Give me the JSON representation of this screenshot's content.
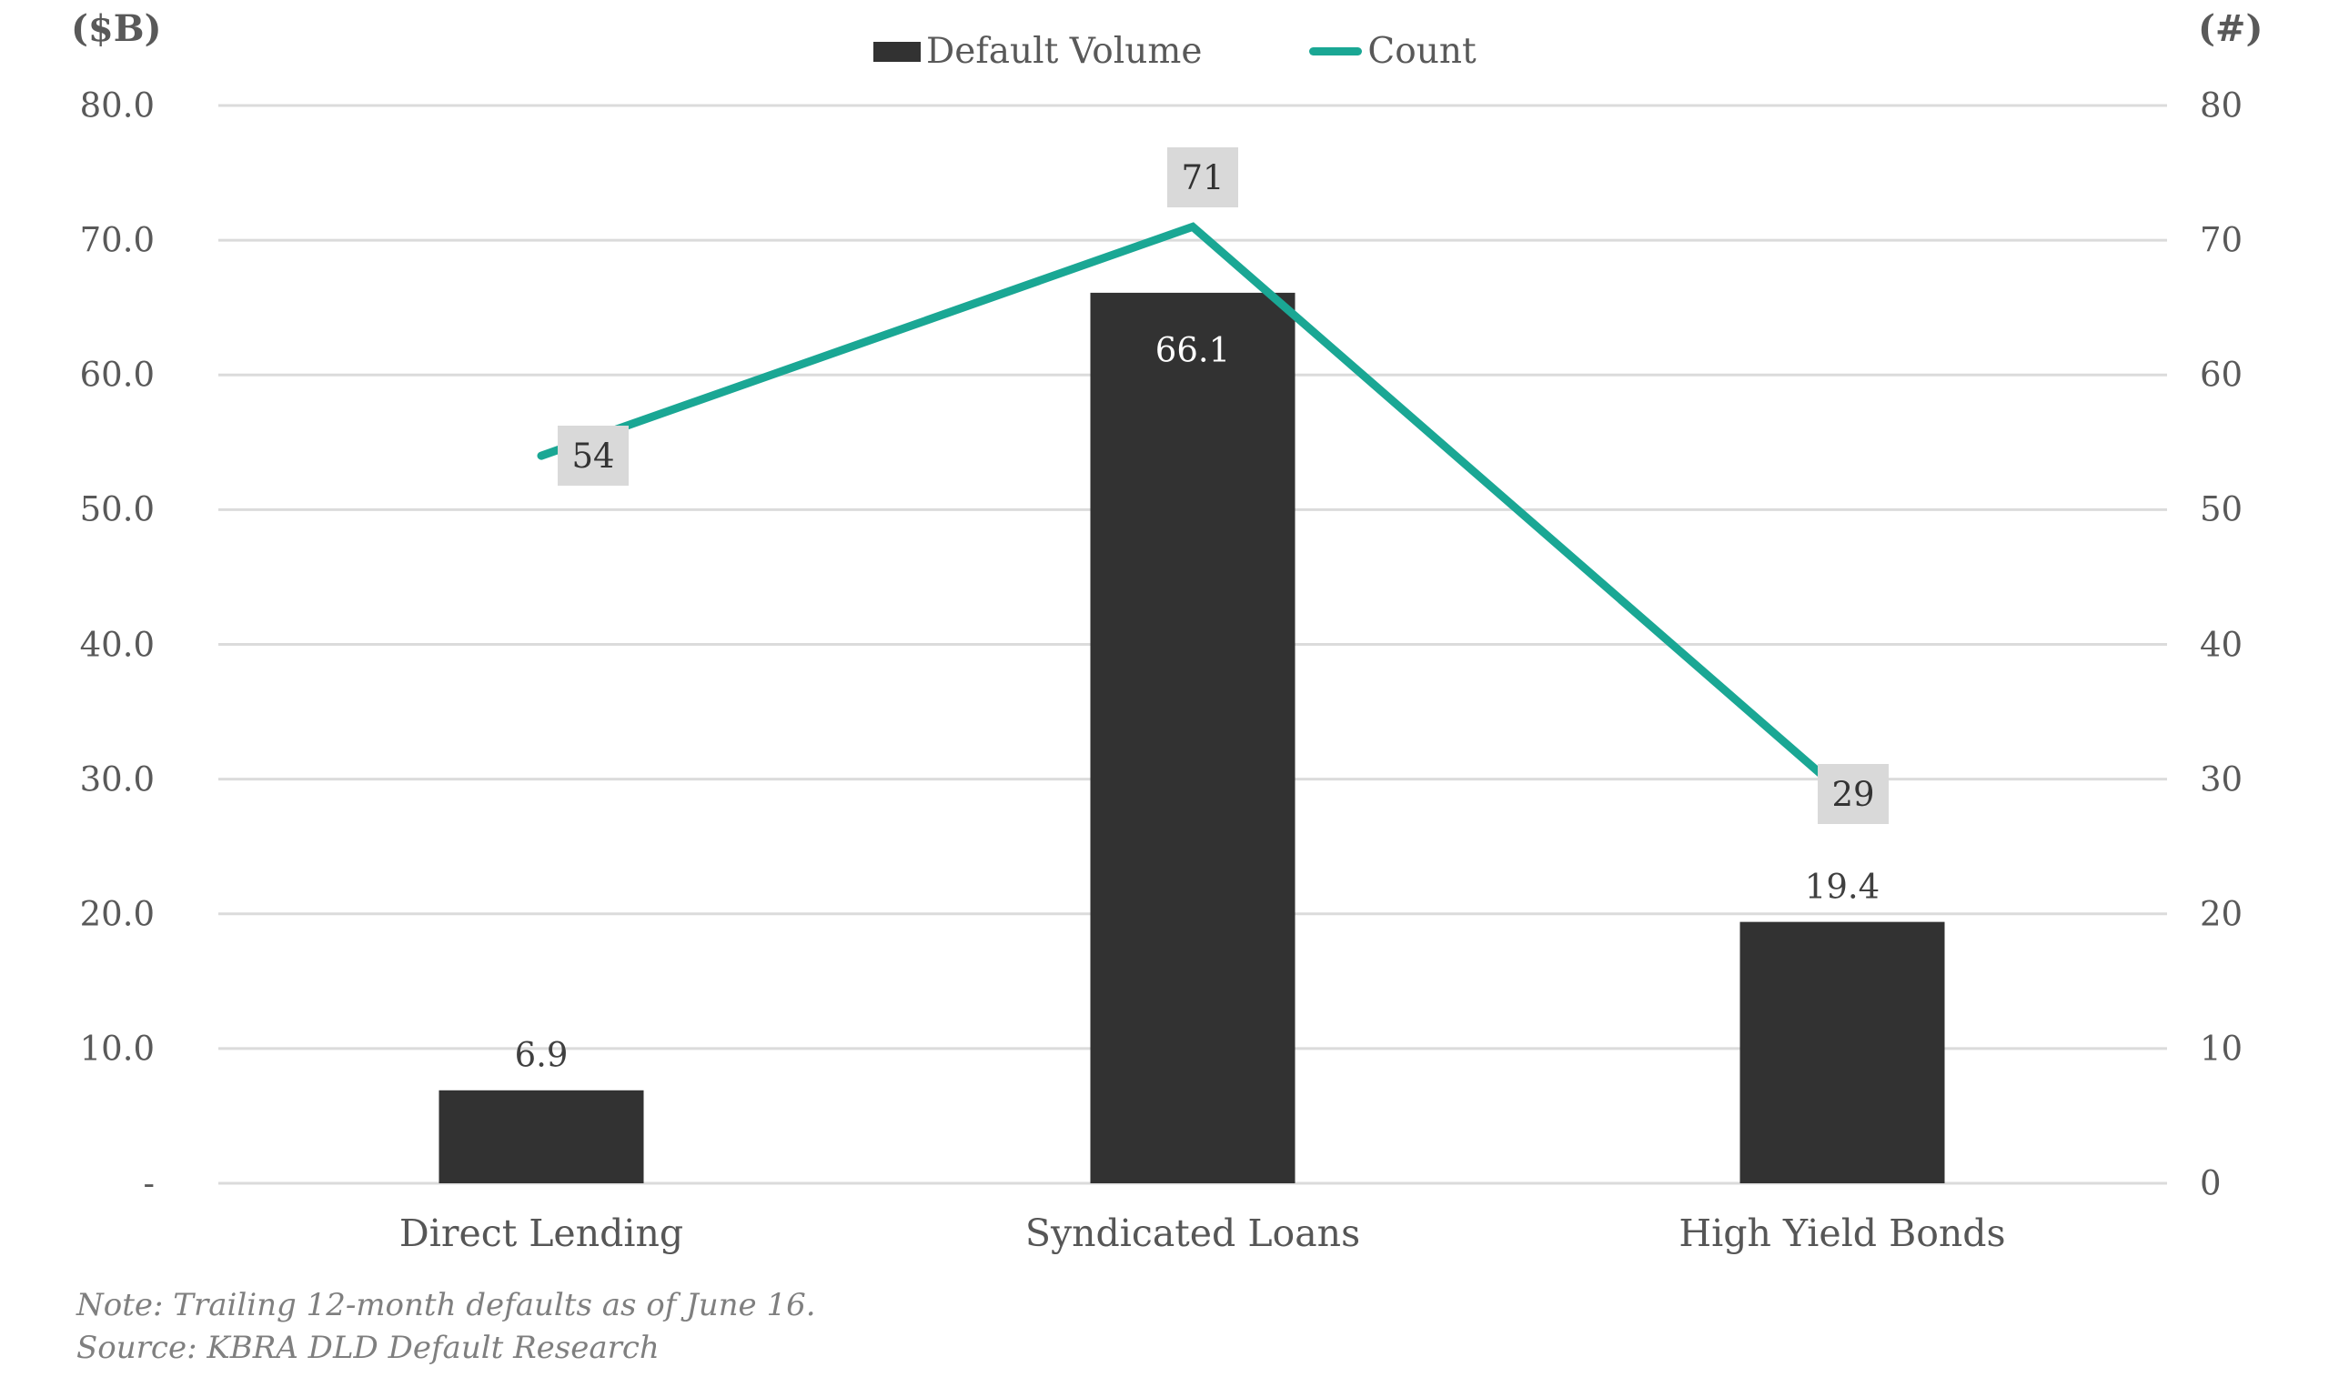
{
  "chart_data": {
    "type": "bar",
    "categories": [
      "Direct Lending",
      "Syndicated Loans",
      "High Yield Bonds"
    ],
    "series": [
      {
        "name": "Default Volume",
        "type": "bar",
        "axis": "left",
        "values": [
          6.9,
          66.1,
          19.4
        ],
        "value_labels": [
          "6.9",
          "66.1",
          "19.4"
        ]
      },
      {
        "name": "Count",
        "type": "line",
        "axis": "right",
        "values": [
          54,
          71,
          29
        ],
        "value_labels": [
          "54",
          "71",
          "29"
        ]
      }
    ],
    "left_axis": {
      "title": "($B)",
      "range": [
        0,
        80
      ],
      "ticks": [
        "80.0",
        "70.0",
        "60.0",
        "50.0",
        "40.0",
        "30.0",
        "20.0",
        "10.0",
        "-"
      ]
    },
    "right_axis": {
      "title": "(#)",
      "range": [
        0,
        80
      ],
      "ticks": [
        "80",
        "70",
        "60",
        "50",
        "40",
        "30",
        "20",
        "10",
        "0"
      ]
    },
    "grid": "horizontal",
    "legend_position": "top-center",
    "notes": [
      "Note: Trailing 12-month defaults as of June 16.",
      "Source: KBRA DLD Default Research"
    ]
  },
  "legend": {
    "items": [
      {
        "label": "Default Volume",
        "swatch": "bar-swatch-icon"
      },
      {
        "label": "Count",
        "swatch": "line-swatch-icon"
      }
    ]
  },
  "colors": {
    "bar": "#323232",
    "line": "#1aa794",
    "grid": "#dbdbdb",
    "label_box_bg": "#d9d9d9",
    "label_box_text": "#333333",
    "axis_text": "#595959",
    "inside_bar_text": "#ffffff"
  }
}
